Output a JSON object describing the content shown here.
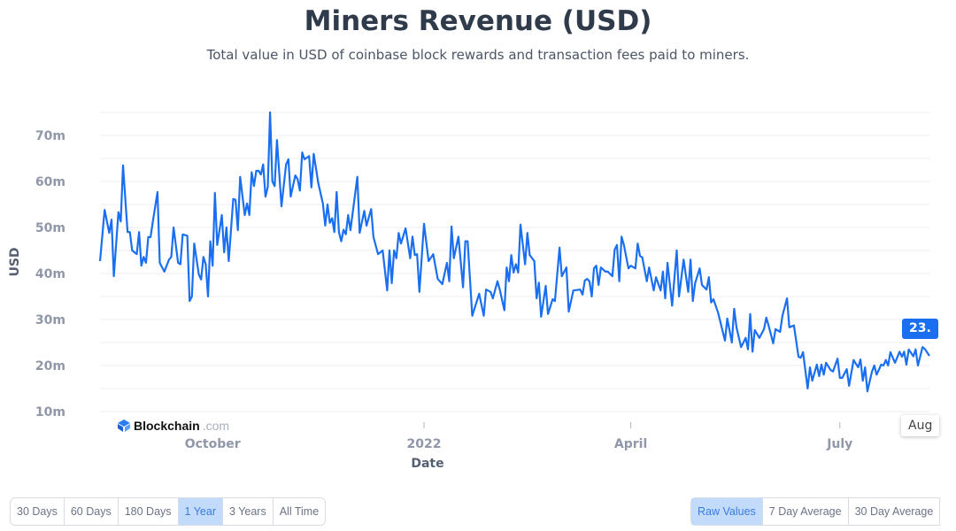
{
  "header": {
    "title": "Miners Revenue (USD)",
    "subtitle": "Total value in USD of coinbase block rewards and transaction fees paid to miners."
  },
  "logo": {
    "name": "Blockchain",
    "domain": ".com"
  },
  "hover": {
    "value_label": "23.",
    "date_label": "Aug"
  },
  "time_range": {
    "options": [
      "30 Days",
      "60 Days",
      "180 Days",
      "1 Year",
      "3 Years",
      "All Time"
    ],
    "selected": "1 Year"
  },
  "smoothing": {
    "options": [
      "Raw Values",
      "7 Day Average",
      "30 Day Average"
    ],
    "selected": "Raw Values"
  },
  "colors": {
    "line": "#1a6ff0",
    "active_button": "#c3dbfb",
    "tooltip": "#1a6ff0"
  },
  "chart_data": {
    "type": "line",
    "title": "Miners Revenue (USD)",
    "xlabel": "Date",
    "ylabel": "USD",
    "ylim": [
      10,
      75
    ],
    "xlim": [
      "2021-08-13",
      "2022-08-09"
    ],
    "grid": true,
    "yticks": [
      {
        "v": 10,
        "label": "10m"
      },
      {
        "v": 20,
        "label": "20m"
      },
      {
        "v": 30,
        "label": "30m"
      },
      {
        "v": 40,
        "label": "40m"
      },
      {
        "v": 50,
        "label": "50m"
      },
      {
        "v": 60,
        "label": "60m"
      },
      {
        "v": 70,
        "label": "70m"
      }
    ],
    "xticks": [
      {
        "date": "2021-10-01",
        "label": "October"
      },
      {
        "date": "2022-01-01",
        "label": "2022"
      },
      {
        "date": "2022-04-01",
        "label": "April"
      },
      {
        "date": "2022-07-01",
        "label": "July"
      }
    ],
    "unit": "million USD",
    "points": [
      [
        "2021-08-13",
        42.7
      ],
      [
        "2021-08-15",
        53.8
      ],
      [
        "2021-08-17",
        48.8
      ],
      [
        "2021-08-18",
        51.7
      ],
      [
        "2021-08-19",
        39.4
      ],
      [
        "2021-08-21",
        53.3
      ],
      [
        "2021-08-22",
        51.3
      ],
      [
        "2021-08-23",
        63.5
      ],
      [
        "2021-08-25",
        49
      ],
      [
        "2021-08-26",
        49
      ],
      [
        "2021-08-27",
        45
      ],
      [
        "2021-08-29",
        44.2
      ],
      [
        "2021-08-30",
        49
      ],
      [
        "2021-08-31",
        41.7
      ],
      [
        "2021-09-01",
        43.6
      ],
      [
        "2021-09-02",
        42.3
      ],
      [
        "2021-09-03",
        47.9
      ],
      [
        "2021-09-04",
        47.9
      ],
      [
        "2021-09-05",
        51.3
      ],
      [
        "2021-09-07",
        57.7
      ],
      [
        "2021-09-08",
        42.3
      ],
      [
        "2021-09-10",
        40.4
      ],
      [
        "2021-09-12",
        43
      ],
      [
        "2021-09-13",
        43.6
      ],
      [
        "2021-09-14",
        50
      ],
      [
        "2021-09-16",
        42.3
      ],
      [
        "2021-09-17",
        42
      ],
      [
        "2021-09-18",
        48.5
      ],
      [
        "2021-09-20",
        48.2
      ],
      [
        "2021-09-21",
        34
      ],
      [
        "2021-09-22",
        35
      ],
      [
        "2021-09-23",
        46.5
      ],
      [
        "2021-09-25",
        39.8
      ],
      [
        "2021-09-26",
        38.7
      ],
      [
        "2021-09-27",
        43.6
      ],
      [
        "2021-09-28",
        42
      ],
      [
        "2021-09-29",
        35
      ],
      [
        "2021-09-30",
        47
      ],
      [
        "2021-10-01",
        41.7
      ],
      [
        "2021-10-02",
        57.5
      ],
      [
        "2021-10-03",
        46.2
      ],
      [
        "2021-10-05",
        52.7
      ],
      [
        "2021-10-06",
        44.6
      ],
      [
        "2021-10-07",
        50
      ],
      [
        "2021-10-08",
        42.7
      ],
      [
        "2021-10-10",
        56.2
      ],
      [
        "2021-10-11",
        56
      ],
      [
        "2021-10-12",
        49.4
      ],
      [
        "2021-10-13",
        61
      ],
      [
        "2021-10-15",
        52.7
      ],
      [
        "2021-10-16",
        55.2
      ],
      [
        "2021-10-17",
        52.7
      ],
      [
        "2021-10-18",
        62
      ],
      [
        "2021-10-19",
        59
      ],
      [
        "2021-10-20",
        62.3
      ],
      [
        "2021-10-21",
        62.3
      ],
      [
        "2021-10-22",
        61.5
      ],
      [
        "2021-10-23",
        63.7
      ],
      [
        "2021-10-24",
        56.7
      ],
      [
        "2021-10-25",
        58.8
      ],
      [
        "2021-10-26",
        75
      ],
      [
        "2021-10-27",
        60
      ],
      [
        "2021-10-28",
        59
      ],
      [
        "2021-10-29",
        69
      ],
      [
        "2021-10-31",
        54.6
      ],
      [
        "2021-11-02",
        63.7
      ],
      [
        "2021-11-03",
        64.8
      ],
      [
        "2021-11-04",
        56.7
      ],
      [
        "2021-11-06",
        61.3
      ],
      [
        "2021-11-07",
        60.5
      ],
      [
        "2021-11-08",
        58
      ],
      [
        "2021-11-09",
        66.3
      ],
      [
        "2021-11-10",
        64.8
      ],
      [
        "2021-11-12",
        65.5
      ],
      [
        "2021-11-13",
        58.7
      ],
      [
        "2021-11-14",
        66
      ],
      [
        "2021-11-16",
        59.6
      ],
      [
        "2021-11-18",
        55.2
      ],
      [
        "2021-11-19",
        50.4
      ],
      [
        "2021-11-20",
        55
      ],
      [
        "2021-11-21",
        51
      ],
      [
        "2021-11-22",
        52
      ],
      [
        "2021-11-23",
        49
      ],
      [
        "2021-11-24",
        57.7
      ],
      [
        "2021-11-25",
        49
      ],
      [
        "2021-11-26",
        47
      ],
      [
        "2021-11-27",
        49.5
      ],
      [
        "2021-11-28",
        48.5
      ],
      [
        "2021-11-29",
        52.7
      ],
      [
        "2021-11-30",
        49.4
      ],
      [
        "2021-12-03",
        61
      ],
      [
        "2021-12-04",
        48.8
      ],
      [
        "2021-12-06",
        53.6
      ],
      [
        "2021-12-07",
        50.4
      ],
      [
        "2021-12-09",
        54
      ],
      [
        "2021-12-10",
        47.9
      ],
      [
        "2021-12-12",
        44.2
      ],
      [
        "2021-12-14",
        45
      ],
      [
        "2021-12-16",
        36.3
      ],
      [
        "2021-12-17",
        45
      ],
      [
        "2021-12-18",
        37.9
      ],
      [
        "2021-12-19",
        45
      ],
      [
        "2021-12-20",
        43.3
      ],
      [
        "2021-12-21",
        48.8
      ],
      [
        "2021-12-22",
        46.5
      ],
      [
        "2021-12-24",
        49.8
      ],
      [
        "2021-12-26",
        43.3
      ],
      [
        "2021-12-27",
        48
      ],
      [
        "2021-12-28",
        44
      ],
      [
        "2021-12-29",
        44.2
      ],
      [
        "2021-12-30",
        36
      ],
      [
        "2022-01-01",
        50.8
      ],
      [
        "2022-01-03",
        42.7
      ],
      [
        "2022-01-05",
        44.2
      ],
      [
        "2022-01-07",
        38.8
      ],
      [
        "2022-01-09",
        37.7
      ],
      [
        "2022-01-11",
        42.3
      ],
      [
        "2022-01-12",
        38.3
      ],
      [
        "2022-01-13",
        50.2
      ],
      [
        "2022-01-14",
        43.3
      ],
      [
        "2022-01-16",
        48
      ],
      [
        "2022-01-18",
        37
      ],
      [
        "2022-01-19",
        47
      ],
      [
        "2022-01-20",
        47
      ],
      [
        "2022-01-22",
        30.8
      ],
      [
        "2022-01-24",
        34
      ],
      [
        "2022-01-25",
        35.6
      ],
      [
        "2022-01-27",
        30.8
      ],
      [
        "2022-01-28",
        36.5
      ],
      [
        "2022-01-30",
        36
      ],
      [
        "2022-01-31",
        34.6
      ],
      [
        "2022-02-02",
        38.3
      ],
      [
        "2022-02-03",
        36.5
      ],
      [
        "2022-02-05",
        32
      ],
      [
        "2022-02-06",
        41.3
      ],
      [
        "2022-02-07",
        38.3
      ],
      [
        "2022-02-08",
        44
      ],
      [
        "2022-02-09",
        40.2
      ],
      [
        "2022-02-10",
        42
      ],
      [
        "2022-02-11",
        40.2
      ],
      [
        "2022-02-12",
        50.6
      ],
      [
        "2022-02-14",
        42
      ],
      [
        "2022-02-15",
        48.8
      ],
      [
        "2022-02-16",
        44
      ],
      [
        "2022-02-18",
        42.7
      ],
      [
        "2022-02-19",
        34.6
      ],
      [
        "2022-02-20",
        38
      ],
      [
        "2022-02-21",
        30.6
      ],
      [
        "2022-02-23",
        37.3
      ],
      [
        "2022-02-24",
        31.2
      ],
      [
        "2022-02-26",
        34.4
      ],
      [
        "2022-02-27",
        34
      ],
      [
        "2022-03-01",
        45.6
      ],
      [
        "2022-03-02",
        39.4
      ],
      [
        "2022-03-04",
        41.3
      ],
      [
        "2022-03-05",
        31.7
      ],
      [
        "2022-03-07",
        36.3
      ],
      [
        "2022-03-10",
        36.5
      ],
      [
        "2022-03-11",
        35.4
      ],
      [
        "2022-03-12",
        38.5
      ],
      [
        "2022-03-13",
        38.8
      ],
      [
        "2022-03-14",
        38.3
      ],
      [
        "2022-03-15",
        35
      ],
      [
        "2022-03-16",
        41.1
      ],
      [
        "2022-03-17",
        41.7
      ],
      [
        "2022-03-18",
        37.5
      ],
      [
        "2022-03-19",
        41.3
      ],
      [
        "2022-03-21",
        40.4
      ],
      [
        "2022-03-22",
        40.4
      ],
      [
        "2022-03-24",
        39.4
      ],
      [
        "2022-03-25",
        45.2
      ],
      [
        "2022-03-26",
        46.2
      ],
      [
        "2022-03-27",
        38.3
      ],
      [
        "2022-03-28",
        48
      ],
      [
        "2022-03-29",
        46.2
      ],
      [
        "2022-03-31",
        41.1
      ],
      [
        "2022-04-01",
        41.7
      ],
      [
        "2022-04-03",
        41.1
      ],
      [
        "2022-04-04",
        46.5
      ],
      [
        "2022-04-05",
        43.8
      ],
      [
        "2022-04-06",
        43.5
      ],
      [
        "2022-04-08",
        38.3
      ],
      [
        "2022-04-09",
        41.3
      ],
      [
        "2022-04-11",
        36.3
      ],
      [
        "2022-04-12",
        39.2
      ],
      [
        "2022-04-14",
        36.3
      ],
      [
        "2022-04-15",
        40.4
      ],
      [
        "2022-04-16",
        34.6
      ],
      [
        "2022-04-17",
        42.3
      ],
      [
        "2022-04-19",
        33
      ],
      [
        "2022-04-21",
        45
      ],
      [
        "2022-04-22",
        35
      ],
      [
        "2022-04-24",
        43
      ],
      [
        "2022-04-26",
        36
      ],
      [
        "2022-04-27",
        43
      ],
      [
        "2022-04-28",
        34
      ],
      [
        "2022-04-29",
        37.9
      ],
      [
        "2022-05-01",
        41.1
      ],
      [
        "2022-05-02",
        37.5
      ],
      [
        "2022-05-04",
        36.5
      ],
      [
        "2022-05-05",
        39.2
      ],
      [
        "2022-05-06",
        33.7
      ],
      [
        "2022-05-07",
        34.4
      ],
      [
        "2022-05-09",
        31.5
      ],
      [
        "2022-05-12",
        25.4
      ],
      [
        "2022-05-13",
        30.2
      ],
      [
        "2022-05-15",
        25
      ],
      [
        "2022-05-16",
        32.3
      ],
      [
        "2022-05-17",
        28.3
      ],
      [
        "2022-05-19",
        24
      ],
      [
        "2022-05-21",
        26
      ],
      [
        "2022-05-22",
        23.5
      ],
      [
        "2022-05-23",
        31.2
      ],
      [
        "2022-05-24",
        23
      ],
      [
        "2022-05-25",
        27.7
      ],
      [
        "2022-05-27",
        26
      ],
      [
        "2022-05-29",
        27.9
      ],
      [
        "2022-05-30",
        30.4
      ],
      [
        "2022-05-31",
        28.7
      ],
      [
        "2022-06-02",
        24.8
      ],
      [
        "2022-06-03",
        27.9
      ],
      [
        "2022-06-05",
        27.3
      ],
      [
        "2022-06-06",
        30.8
      ],
      [
        "2022-06-08",
        34.6
      ],
      [
        "2022-06-09",
        28.3
      ],
      [
        "2022-06-11",
        28.7
      ],
      [
        "2022-06-13",
        21.9
      ],
      [
        "2022-06-14",
        21.7
      ],
      [
        "2022-06-15",
        22.9
      ],
      [
        "2022-06-17",
        15
      ],
      [
        "2022-06-18",
        19.6
      ],
      [
        "2022-06-19",
        16.7
      ],
      [
        "2022-06-21",
        20.2
      ],
      [
        "2022-06-22",
        17.7
      ],
      [
        "2022-06-23",
        20.2
      ],
      [
        "2022-06-24",
        18
      ],
      [
        "2022-06-25",
        20.6
      ],
      [
        "2022-06-27",
        19
      ],
      [
        "2022-06-28",
        18.7
      ],
      [
        "2022-06-30",
        21.5
      ],
      [
        "2022-07-01",
        17.3
      ],
      [
        "2022-07-02",
        17.3
      ],
      [
        "2022-07-04",
        19.2
      ],
      [
        "2022-07-05",
        15.6
      ],
      [
        "2022-07-07",
        21.2
      ],
      [
        "2022-07-09",
        19.6
      ],
      [
        "2022-07-10",
        21.3
      ],
      [
        "2022-07-11",
        16.7
      ],
      [
        "2022-07-12",
        19.6
      ],
      [
        "2022-07-13",
        14.4
      ],
      [
        "2022-07-15",
        18.7
      ],
      [
        "2022-07-16",
        20
      ],
      [
        "2022-07-17",
        18
      ],
      [
        "2022-07-19",
        20.2
      ],
      [
        "2022-07-20",
        20
      ],
      [
        "2022-07-21",
        21.2
      ],
      [
        "2022-07-22",
        20
      ],
      [
        "2022-07-23",
        22.9
      ],
      [
        "2022-07-25",
        20.6
      ],
      [
        "2022-07-27",
        23
      ],
      [
        "2022-07-28",
        21.9
      ],
      [
        "2022-07-29",
        23
      ],
      [
        "2022-07-30",
        20.2
      ],
      [
        "2022-07-31",
        23.5
      ],
      [
        "2022-08-02",
        22
      ],
      [
        "2022-08-03",
        23.5
      ],
      [
        "2022-08-04",
        20
      ],
      [
        "2022-08-06",
        24
      ],
      [
        "2022-08-07",
        23.6
      ],
      [
        "2022-08-09",
        22.1
      ]
    ]
  }
}
